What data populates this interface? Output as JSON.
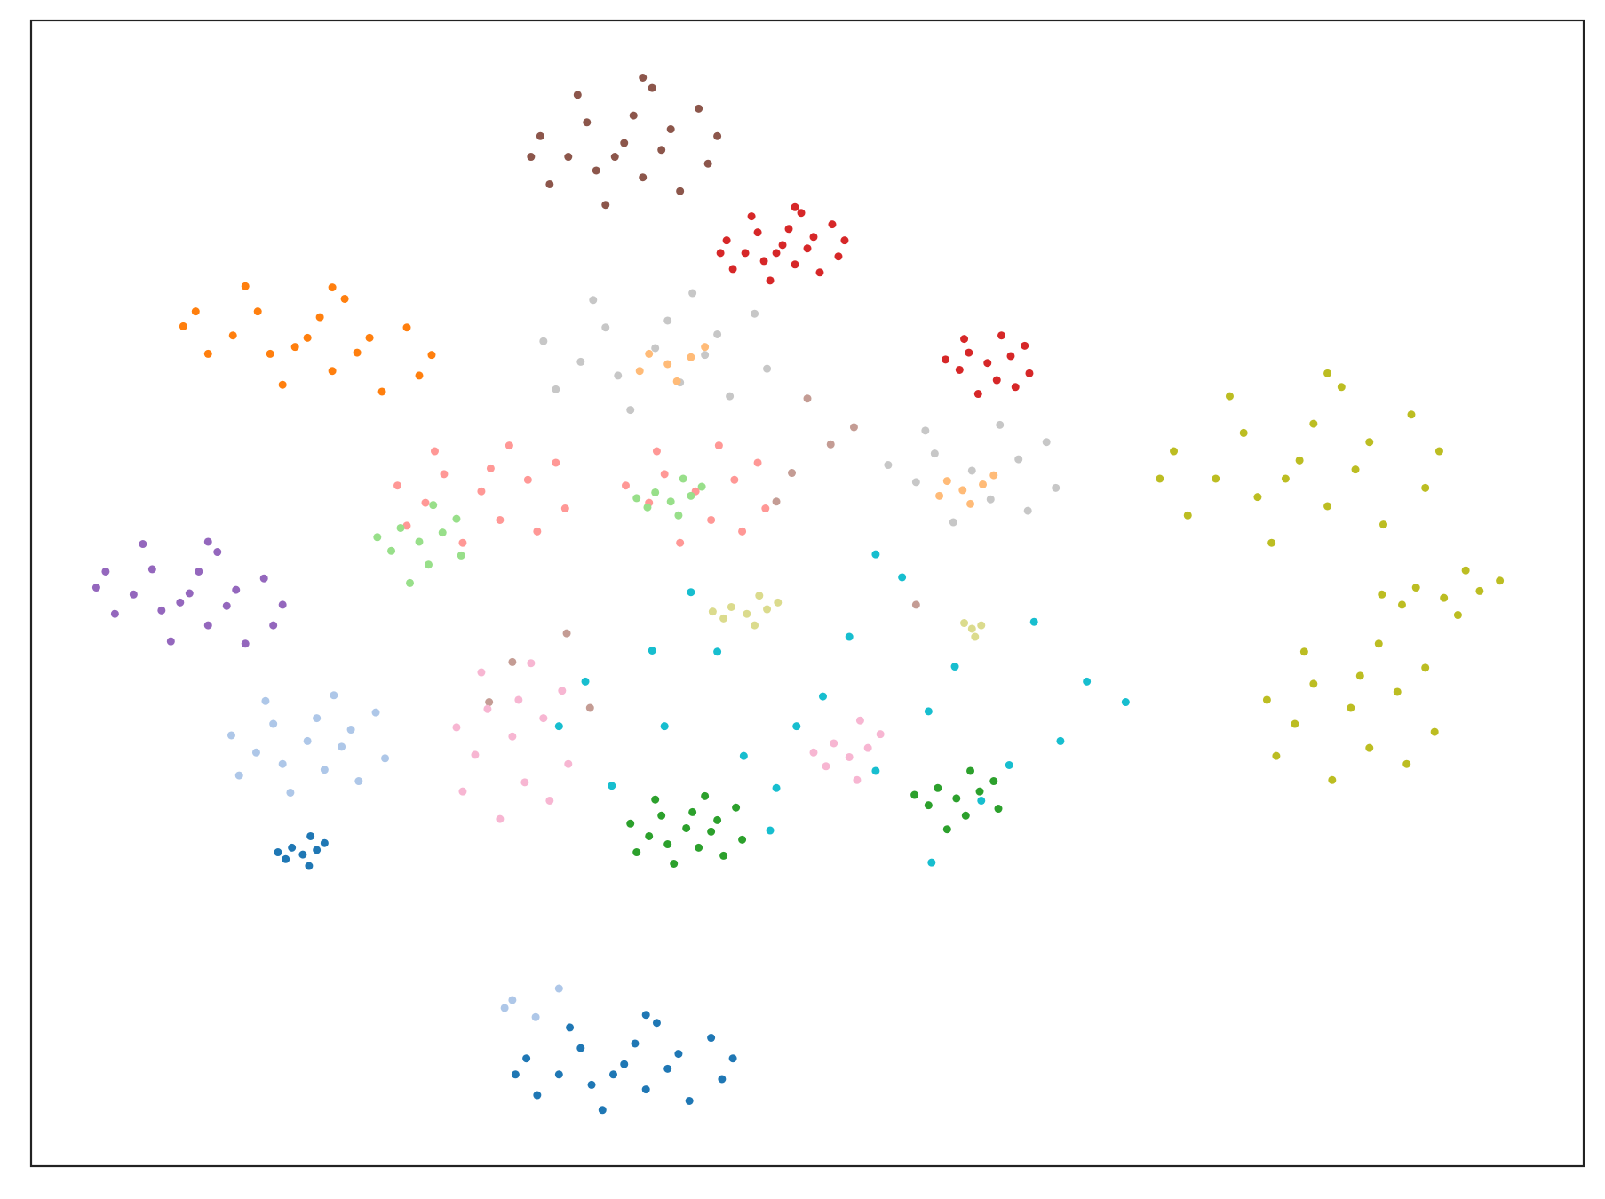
{
  "chart_data": {
    "type": "scatter",
    "xlim": [
      0,
      100
    ],
    "ylim": [
      0,
      100
    ],
    "grid": false,
    "series": [
      {
        "color": "#8c564b",
        "x": [
          38.2,
          41.2,
          35.8,
          39.4,
          34.6,
          43.0,
          32.8,
          40.0,
          37.0,
          43.6,
          35.2,
          41.8,
          33.4,
          38.8,
          36.4,
          40.6,
          44.2,
          32.2,
          39.4,
          37.6
        ],
        "values": [
          89.3,
          90.5,
          91.1,
          86.3,
          88.1,
          92.3,
          89.9,
          94.1,
          83.9,
          87.5,
          93.5,
          85.1,
          85.7,
          91.7,
          86.9,
          88.7,
          89.9,
          88.1,
          95.0,
          88.1
        ]
      },
      {
        "color": "#d62728",
        "x": [
          48.4,
          50.4,
          46.8,
          49.2,
          46.0,
          51.6,
          44.8,
          49.6,
          47.6,
          52.0,
          46.4,
          50.8,
          45.2,
          48.8,
          47.2,
          50.0,
          52.4,
          44.4,
          49.2,
          48.0,
          61.6,
          63.1,
          60.4,
          62.2,
          59.8,
          64.0,
          58.9,
          62.5,
          61.0,
          64.3,
          60.1,
          63.4
        ],
        "values": [
          80.4,
          81.1,
          81.5,
          78.7,
          79.7,
          82.2,
          80.8,
          83.2,
          77.3,
          79.4,
          82.9,
          78.0,
          78.3,
          81.8,
          79.0,
          80.1,
          80.8,
          79.7,
          83.7,
          79.7,
          70.1,
          70.7,
          71.0,
          68.6,
          69.5,
          71.6,
          70.4,
          72.5,
          67.4,
          69.2,
          72.2,
          68.0
        ]
      },
      {
        "color": "#ff7f0e",
        "x": [
          17.8,
          21.8,
          14.6,
          19.4,
          13.0,
          24.2,
          10.6,
          20.2,
          16.2,
          25.0,
          13.8,
          22.6,
          11.4,
          18.6,
          15.4,
          21.0,
          25.8,
          9.8,
          19.4,
          17.0
        ],
        "values": [
          72.3,
          72.3,
          74.6,
          69.4,
          72.5,
          73.2,
          74.6,
          75.7,
          68.2,
          69.0,
          76.8,
          67.6,
          70.9,
          74.1,
          70.9,
          71.0,
          70.8,
          73.3,
          76.7,
          71.5
        ]
      },
      {
        "color": "#9467bd",
        "x": [
          10.2,
          13.2,
          7.8,
          11.4,
          6.6,
          15.0,
          4.8,
          12.0,
          9.0,
          15.6,
          7.2,
          13.8,
          5.4,
          10.8,
          8.4,
          12.6,
          16.2,
          4.2,
          11.4,
          9.6
        ],
        "values": [
          50.0,
          50.3,
          52.1,
          47.2,
          49.9,
          51.3,
          51.9,
          53.6,
          45.8,
          47.2,
          54.3,
          45.6,
          48.2,
          51.9,
          48.5,
          48.9,
          49.0,
          50.5,
          54.5,
          49.2
        ]
      },
      {
        "color": "#aec7e8",
        "x": [
          17.8,
          20.6,
          15.6,
          18.9,
          14.5,
          22.2,
          12.9,
          19.5,
          16.7,
          22.8,
          15.1,
          21.1,
          13.4,
          18.4,
          16.2,
          20.0,
          31.0,
          32.5,
          34.0,
          30.5
        ],
        "values": [
          37.1,
          38.1,
          38.6,
          34.6,
          36.1,
          39.6,
          37.6,
          41.1,
          32.6,
          35.6,
          40.6,
          33.6,
          34.1,
          39.1,
          35.1,
          36.6,
          14.5,
          13.0,
          15.5,
          13.8
        ]
      },
      {
        "color": "#1f77b4",
        "x": [
          17.5,
          18.4,
          16.8,
          17.9,
          16.4,
          18.9,
          15.9,
          18.0,
          38.2,
          41.7,
          35.4,
          39.6,
          34.0,
          43.8,
          31.9,
          40.3,
          36.8,
          44.5,
          34.7,
          42.4,
          32.6,
          38.9,
          36.1,
          41.0,
          45.2,
          31.2,
          39.6,
          37.5
        ],
        "values": [
          27.2,
          27.6,
          27.8,
          26.2,
          26.8,
          28.2,
          27.4,
          28.8,
          8.9,
          9.8,
          10.3,
          6.7,
          8.0,
          11.2,
          9.4,
          12.5,
          4.9,
          7.6,
          12.1,
          5.7,
          6.2,
          10.7,
          7.1,
          8.5,
          9.4,
          8.0,
          13.2,
          8.0
        ]
      },
      {
        "color": "#bcbd22",
        "x": [
          81.7,
          86.2,
          78.1,
          83.5,
          76.3,
          88.9,
          73.6,
          84.4,
          79.9,
          89.8,
          77.2,
          87.1,
          74.5,
          82.6,
          79.0,
          85.3,
          90.7,
          72.7,
          83.5,
          80.8,
          85.0,
          88.0,
          82.6,
          86.2,
          81.4,
          89.8,
          79.6,
          86.8,
          83.8,
          90.4,
          82.0,
          88.6,
          80.2,
          85.6,
          91.0,
          93.3,
          89.2,
          91.9,
          88.3,
          94.6,
          87.0,
          92.4
        ],
        "values": [
          61.6,
          63.2,
          64.0,
          57.6,
          60.0,
          65.6,
          62.4,
          68.0,
          54.4,
          59.2,
          67.2,
          56.0,
          56.8,
          64.8,
          58.4,
          60.8,
          62.4,
          60.0,
          69.2,
          60.0,
          40.0,
          41.4,
          42.1,
          36.5,
          38.6,
          43.5,
          40.7,
          45.6,
          33.7,
          37.9,
          44.9,
          35.1,
          35.8,
          42.8,
          49.6,
          50.2,
          50.5,
          48.1,
          49.0,
          51.1,
          49.9,
          52.0
        ]
      },
      {
        "color": "#c7c7c7",
        "x": [
          40.2,
          44.2,
          37.0,
          41.8,
          35.4,
          46.6,
          33.0,
          42.6,
          38.6,
          47.4,
          36.2,
          45.0,
          33.8,
          41.0,
          37.8,
          43.4,
          60.6,
          63.6,
          58.2,
          61.8,
          57.0,
          65.4,
          55.2,
          62.4,
          59.4,
          66.0,
          57.6,
          64.2
        ],
        "values": [
          71.4,
          72.6,
          73.2,
          68.4,
          70.2,
          74.4,
          72.0,
          76.2,
          66.0,
          69.6,
          75.6,
          67.2,
          67.8,
          73.8,
          69.0,
          70.8,
          60.7,
          61.7,
          62.2,
          58.2,
          59.7,
          63.2,
          61.2,
          64.7,
          56.2,
          59.2,
          64.2,
          57.2
        ]
      },
      {
        "color": "#ffbb78",
        "x": [
          41.0,
          42.5,
          39.8,
          41.6,
          39.2,
          43.4,
          60.0,
          61.3,
          59.0,
          60.5,
          58.5,
          62.0
        ],
        "values": [
          70.0,
          70.6,
          70.9,
          68.5,
          69.4,
          71.5,
          59.0,
          59.5,
          59.8,
          57.8,
          58.5,
          60.3
        ]
      },
      {
        "color": "#ff9896",
        "x": [
          29.0,
          32.0,
          26.6,
          30.2,
          25.4,
          33.8,
          23.6,
          30.8,
          27.8,
          34.4,
          26.0,
          32.6,
          24.2,
          29.6,
          42.8,
          45.3,
          40.8,
          43.8,
          39.8,
          46.8,
          38.3,
          44.3,
          41.8,
          47.3,
          40.3,
          45.8
        ],
        "values": [
          58.9,
          59.9,
          60.4,
          56.4,
          57.9,
          61.4,
          59.4,
          62.9,
          54.4,
          57.4,
          62.4,
          55.4,
          55.9,
          60.9,
          58.9,
          59.9,
          60.4,
          56.4,
          57.9,
          61.4,
          59.4,
          62.9,
          54.4,
          57.4,
          62.4,
          55.4
        ]
      },
      {
        "color": "#98df8a",
        "x": [
          25.0,
          26.5,
          23.8,
          25.6,
          23.2,
          27.4,
          22.3,
          25.9,
          24.4,
          27.7,
          41.2,
          42.5,
          40.2,
          41.7,
          39.7,
          43.2,
          39.0,
          42.0
        ],
        "values": [
          54.5,
          55.3,
          55.7,
          52.5,
          53.7,
          56.5,
          54.9,
          57.7,
          50.9,
          53.3,
          58.0,
          58.5,
          58.8,
          56.8,
          57.5,
          59.3,
          58.3,
          60.0
        ]
      },
      {
        "color": "#c49c94",
        "x": [
          31.0,
          34.5,
          36.0,
          49.0,
          51.5,
          48.0,
          53.0,
          29.5,
          57.0,
          50.0
        ],
        "values": [
          44.0,
          46.5,
          40.0,
          60.5,
          63.0,
          58.0,
          64.5,
          40.5,
          49.0,
          67.0
        ]
      },
      {
        "color": "#f7b6d2",
        "x": [
          31.0,
          33.0,
          29.4,
          31.8,
          28.6,
          34.2,
          27.4,
          32.2,
          30.2,
          34.6,
          29.0,
          33.4,
          27.8,
          31.4,
          52.7,
          53.9,
          51.7,
          53.2,
          51.2,
          54.7,
          50.4,
          53.4
        ],
        "values": [
          37.5,
          39.1,
          39.9,
          33.5,
          35.9,
          41.5,
          38.3,
          43.9,
          30.3,
          35.1,
          43.1,
          31.9,
          32.7,
          40.7,
          35.7,
          36.5,
          36.9,
          33.7,
          34.9,
          37.7,
          36.1,
          38.9
        ]
      },
      {
        "color": "#17becf",
        "x": [
          51.0,
          59.5,
          44.2,
          54.4,
          40.8,
          64.6,
          35.7,
          56.1,
          47.6,
          66.3,
          42.5,
          61.2,
          37.4,
          52.7,
          45.9,
          57.8,
          68.0,
          34.0,
          54.4,
          49.3,
          40.0,
          63.0,
          58.0,
          70.5,
          48.0
        ],
        "values": [
          41.0,
          43.6,
          44.9,
          34.5,
          38.4,
          47.5,
          42.3,
          51.4,
          29.3,
          37.1,
          50.1,
          31.9,
          33.2,
          46.2,
          35.8,
          39.7,
          42.3,
          38.4,
          53.4,
          38.4,
          45.0,
          35.0,
          26.5,
          40.5,
          33.0
        ]
      },
      {
        "color": "#dbdb8d",
        "x": [
          46.1,
          47.4,
          45.1,
          46.6,
          44.6,
          48.1,
          43.9,
          46.9,
          60.6,
          61.2,
          60.1,
          60.8
        ],
        "values": [
          48.2,
          48.6,
          48.8,
          47.2,
          47.8,
          49.2,
          48.4,
          49.8,
          46.9,
          47.2,
          47.4,
          46.2
        ]
      },
      {
        "color": "#2ca02c",
        "x": [
          42.2,
          44.2,
          40.6,
          43.0,
          39.8,
          45.4,
          38.6,
          43.4,
          41.4,
          45.8,
          40.2,
          44.6,
          39.0,
          42.6,
          41.0,
          43.8,
          59.6,
          61.1,
          58.4,
          60.2,
          57.8,
          62.0,
          56.9,
          60.5,
          59.0,
          62.3
        ],
        "values": [
          29.5,
          30.2,
          30.6,
          27.8,
          28.8,
          31.3,
          29.9,
          32.3,
          26.4,
          28.5,
          32.0,
          27.1,
          27.4,
          30.9,
          28.1,
          29.2,
          32.1,
          32.7,
          33.0,
          30.6,
          31.5,
          33.6,
          32.4,
          34.5,
          29.4,
          31.2
        ]
      }
    ]
  }
}
